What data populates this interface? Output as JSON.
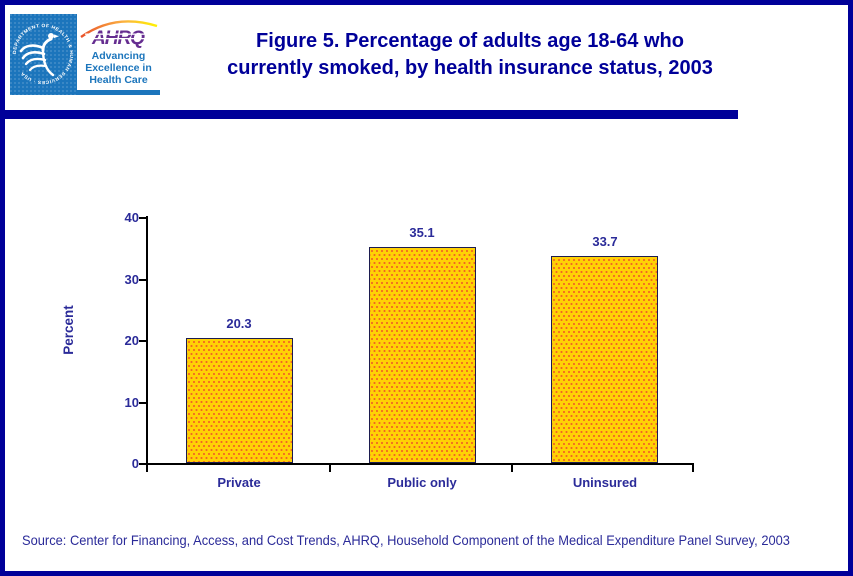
{
  "page": {
    "border_color": "#000099",
    "accent_navy": "#000099"
  },
  "header": {
    "logo": {
      "hhs_seal_text": "DEPARTMENT OF HEALTH & HUMAN SERVICES · USA",
      "ahrq_acronym": "AHRQ",
      "tagline_lines": [
        "Advancing",
        "Excellence in",
        "Health Care"
      ]
    },
    "title_lines": [
      "Figure 5. Percentage of adults age 18-64 who",
      "currently smoked, by health insurance status, 2003"
    ]
  },
  "chart_data": {
    "type": "bar",
    "title": "Figure 5. Percentage of adults age 18-64 who currently smoked, by health insurance status, 2003",
    "categories": [
      "Private",
      "Public only",
      "Uninsured"
    ],
    "values": [
      20.3,
      35.1,
      33.7
    ],
    "value_labels": [
      "20.3",
      "35.1",
      "33.7"
    ],
    "xlabel": "",
    "ylabel": "Percent",
    "ylim": [
      0,
      40
    ],
    "yticks": [
      0,
      10,
      20,
      30,
      40
    ],
    "grid": false,
    "legend": false,
    "bar_fill_color": "#FFD105",
    "bar_dot_color": "#F26522",
    "bar_border_color": "#1c1c50",
    "axis_color": "#000000",
    "label_color": "#2B2B99"
  },
  "footer": {
    "source_text": "Source: Center for Financing, Access, and Cost Trends, AHRQ, Household Component of the Medical Expenditure Panel Survey, 2003"
  }
}
